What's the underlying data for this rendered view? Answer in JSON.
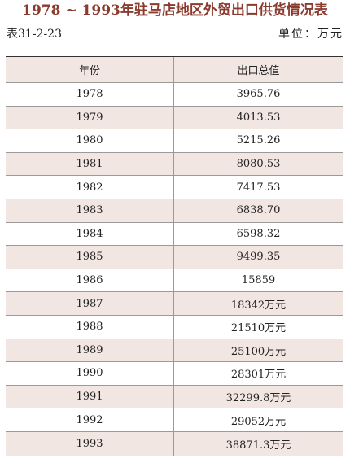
{
  "title": "1978 ~ 1993年驻马店地区外贸出口供货情况表",
  "table_id": "表31-2-23",
  "unit": "单位：万元",
  "columns": [
    "年份",
    "出口总值"
  ],
  "rows": [
    {
      "year": "1978",
      "value": "3965.76"
    },
    {
      "year": "1979",
      "value": "4013.53"
    },
    {
      "year": "1980",
      "value": "5215.26"
    },
    {
      "year": "1981",
      "value": "8080.53"
    },
    {
      "year": "1982",
      "value": "7417.53"
    },
    {
      "year": "1983",
      "value": "6838.70"
    },
    {
      "year": "1984",
      "value": "6598.32"
    },
    {
      "year": "1985",
      "value": "9499.35"
    },
    {
      "year": "1986",
      "value": "15859"
    },
    {
      "year": "1987",
      "value": "18342万元"
    },
    {
      "year": "1988",
      "value": "21510万元"
    },
    {
      "year": "1989",
      "value": "25100万元"
    },
    {
      "year": "1990",
      "value": "28301万元"
    },
    {
      "year": "1991",
      "value": "32299.8万元"
    },
    {
      "year": "1992",
      "value": "29052万元"
    },
    {
      "year": "1993",
      "value": "38871.3万元"
    }
  ]
}
